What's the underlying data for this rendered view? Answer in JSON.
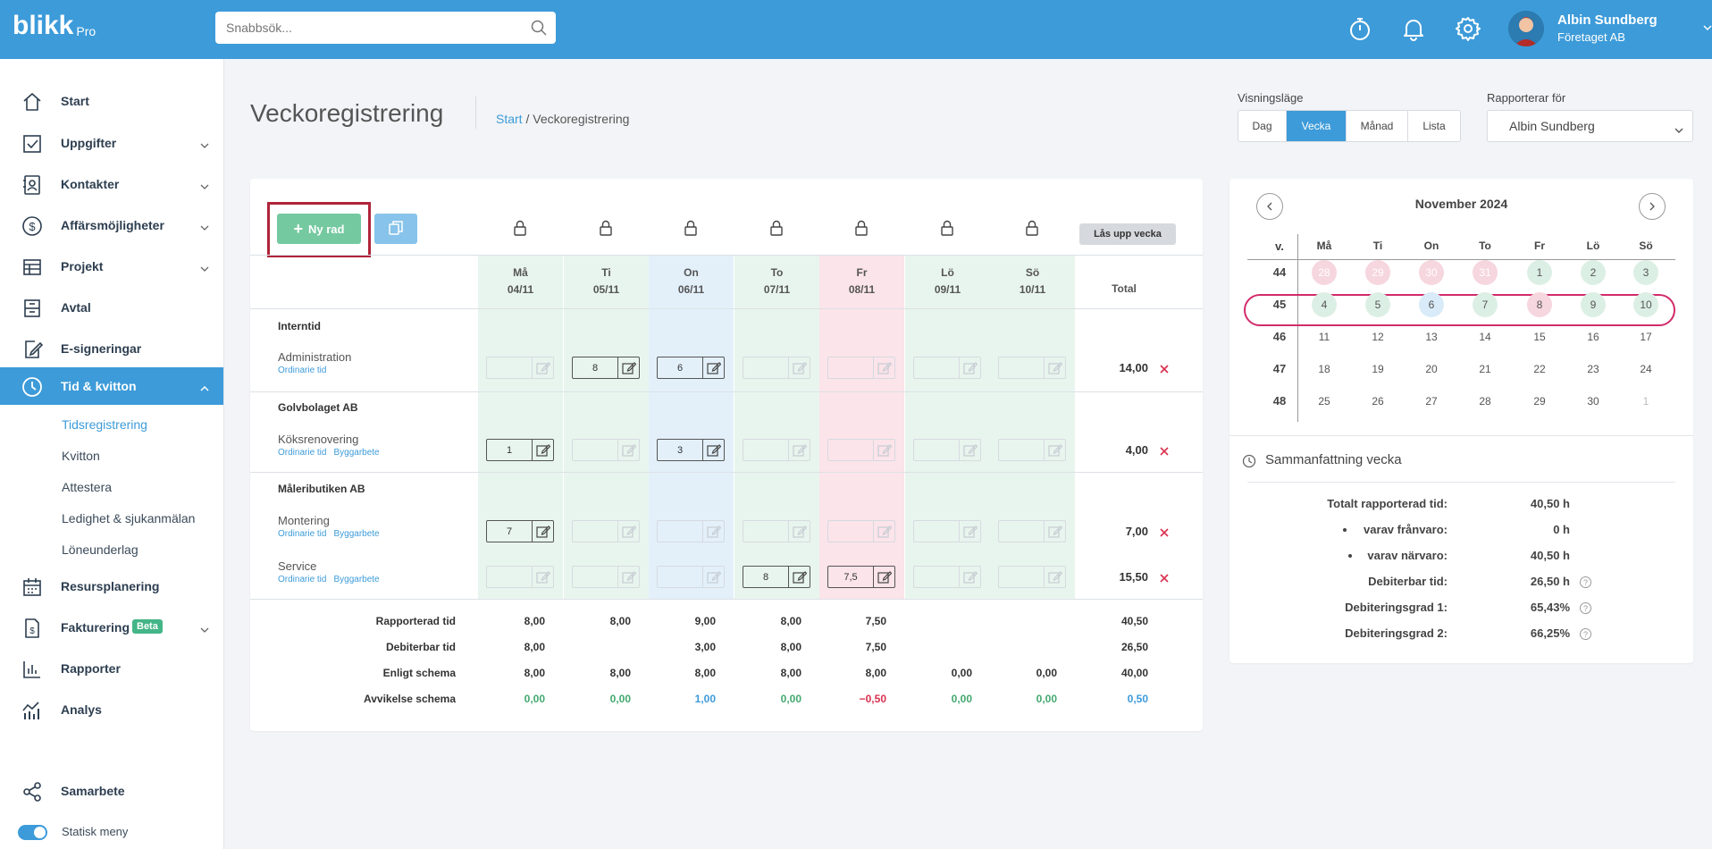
{
  "app": {
    "logo_text": "blikk",
    "logo_sub": "Pro"
  },
  "search": {
    "placeholder": "Snabbsök..."
  },
  "user": {
    "name": "Albin Sundberg",
    "company": "Företaget AB"
  },
  "sidebar": {
    "items": [
      {
        "key": "start",
        "label": "Start",
        "icon": "home-icon"
      },
      {
        "key": "uppgifter",
        "label": "Uppgifter",
        "icon": "checkbox-icon"
      },
      {
        "key": "kontakter",
        "label": "Kontakter",
        "icon": "contacts-icon"
      },
      {
        "key": "affar",
        "label": "Affärsmöjligheter",
        "icon": "dollar-icon"
      },
      {
        "key": "projekt",
        "label": "Projekt",
        "icon": "table-icon"
      },
      {
        "key": "avtal",
        "label": "Avtal",
        "icon": "archive-icon"
      },
      {
        "key": "esign",
        "label": "E-signeringar",
        "icon": "signature-icon"
      },
      {
        "key": "tid",
        "label": "Tid & kvitton",
        "icon": "clock-icon"
      },
      {
        "key": "resurs",
        "label": "Resursplanering",
        "icon": "calendar-icon"
      },
      {
        "key": "fakt",
        "label": "Fakturering",
        "icon": "invoice-icon",
        "badge": "Beta"
      },
      {
        "key": "rapporter",
        "label": "Rapporter",
        "icon": "bar-chart-icon"
      },
      {
        "key": "analys",
        "label": "Analys",
        "icon": "analytics-icon"
      },
      {
        "key": "samarbete",
        "label": "Samarbete",
        "icon": "share-icon"
      }
    ],
    "sub_items": [
      "Tidsregistrering",
      "Kvitton",
      "Attestera",
      "Ledighet & sjukanmälan",
      "Löneunderlag"
    ],
    "toggle_label": "Statisk meny"
  },
  "page": {
    "title": "Veckoregistrering",
    "breadcrumb_link": "Start",
    "breadcrumb_sep": " / ",
    "breadcrumb_current": "Veckoregistrering"
  },
  "view_mode": {
    "label": "Visningsläge",
    "options": [
      "Dag",
      "Vecka",
      "Månad",
      "Lista"
    ],
    "selected": "Vecka"
  },
  "reporter": {
    "label": "Rapporterar för",
    "value": "Albin Sundberg"
  },
  "toolbar": {
    "new_row": "Ny rad",
    "unlock_week": "Lås upp vecka"
  },
  "week": {
    "days": [
      {
        "name": "Må",
        "date": "04/11"
      },
      {
        "name": "Ti",
        "date": "05/11"
      },
      {
        "name": "On",
        "date": "06/11"
      },
      {
        "name": "To",
        "date": "07/11"
      },
      {
        "name": "Fr",
        "date": "08/11"
      },
      {
        "name": "Lö",
        "date": "09/11"
      },
      {
        "name": "Sö",
        "date": "10/11"
      }
    ],
    "total_header": "Total",
    "groups": [
      {
        "name": "Interntid",
        "tasks": [
          {
            "name": "Administration",
            "tags": [
              "Ordinarie tid"
            ],
            "values": [
              "",
              "8",
              "6",
              "",
              "",
              "",
              ""
            ],
            "total": "14,00"
          }
        ]
      },
      {
        "name": "Golvbolaget AB",
        "tasks": [
          {
            "name": "Köksrenovering",
            "tags": [
              "Ordinarie tid",
              "Byggarbete"
            ],
            "values": [
              "1",
              "",
              "3",
              "",
              "",
              "",
              ""
            ],
            "total": "4,00"
          }
        ]
      },
      {
        "name": "Måleributiken AB",
        "tasks": [
          {
            "name": "Montering",
            "tags": [
              "Ordinarie tid",
              "Byggarbete"
            ],
            "values": [
              "7",
              "",
              "",
              "",
              "",
              "",
              ""
            ],
            "total": "7,00"
          },
          {
            "name": "Service",
            "tags": [
              "Ordinarie tid",
              "Byggarbete"
            ],
            "values": [
              "",
              "",
              "",
              "8",
              "7,5",
              "",
              ""
            ],
            "total": "15,50"
          }
        ]
      }
    ],
    "summary": [
      {
        "label": "Rapporterad tid",
        "values": [
          "8,00",
          "8,00",
          "9,00",
          "8,00",
          "7,50",
          "",
          ""
        ],
        "total": "40,50"
      },
      {
        "label": "Debiterbar tid",
        "values": [
          "8,00",
          "",
          "3,00",
          "8,00",
          "7,50",
          "",
          ""
        ],
        "total": "26,50"
      },
      {
        "label": "Enligt schema",
        "values": [
          "8,00",
          "8,00",
          "8,00",
          "8,00",
          "8,00",
          "0,00",
          "0,00"
        ],
        "total": "40,00"
      },
      {
        "label": "Avvikelse schema",
        "values": [
          "0,00",
          "0,00",
          "1,00",
          "0,00",
          "−0,50",
          "0,00",
          "0,00"
        ],
        "total": "0,50"
      }
    ]
  },
  "calendar": {
    "title": "November 2024",
    "week_col": "v.",
    "day_headers": [
      "Må",
      "Ti",
      "On",
      "To",
      "Fr",
      "Lö",
      "Sö"
    ],
    "weeks": [
      {
        "num": "44",
        "days": [
          "28",
          "29",
          "30",
          "31",
          "1",
          "2",
          "3"
        ]
      },
      {
        "num": "45",
        "days": [
          "4",
          "5",
          "6",
          "7",
          "8",
          "9",
          "10"
        ]
      },
      {
        "num": "46",
        "days": [
          "11",
          "12",
          "13",
          "14",
          "15",
          "16",
          "17"
        ]
      },
      {
        "num": "47",
        "days": [
          "18",
          "19",
          "20",
          "21",
          "22",
          "23",
          "24"
        ]
      },
      {
        "num": "48",
        "days": [
          "25",
          "26",
          "27",
          "28",
          "29",
          "30",
          "1"
        ]
      }
    ],
    "selected_week": "45"
  },
  "week_summary": {
    "title": "Sammanfattning vecka",
    "rows": [
      {
        "label": "Totalt rapporterad tid:",
        "value": "40,50 h",
        "help": false
      },
      {
        "label": "varav frånvaro:",
        "value": "0 h",
        "help": false,
        "bullet": true
      },
      {
        "label": "varav närvaro:",
        "value": "40,50 h",
        "help": false,
        "bullet": true
      },
      {
        "label": "Debiterbar tid:",
        "value": "26,50 h",
        "help": true
      },
      {
        "label": "Debiteringsgrad 1:",
        "value": "65,43%",
        "help": true
      },
      {
        "label": "Debiteringsgrad 2:",
        "value": "66,25%",
        "help": true
      }
    ]
  },
  "colors": {
    "primary": "#3d9bd9",
    "mint": "#e8f5ee",
    "lightblue": "#e3f0fa",
    "pink": "#fbe4ea",
    "highlight_frame": "#b0243a",
    "calendar_oval": "#d22b6b"
  }
}
